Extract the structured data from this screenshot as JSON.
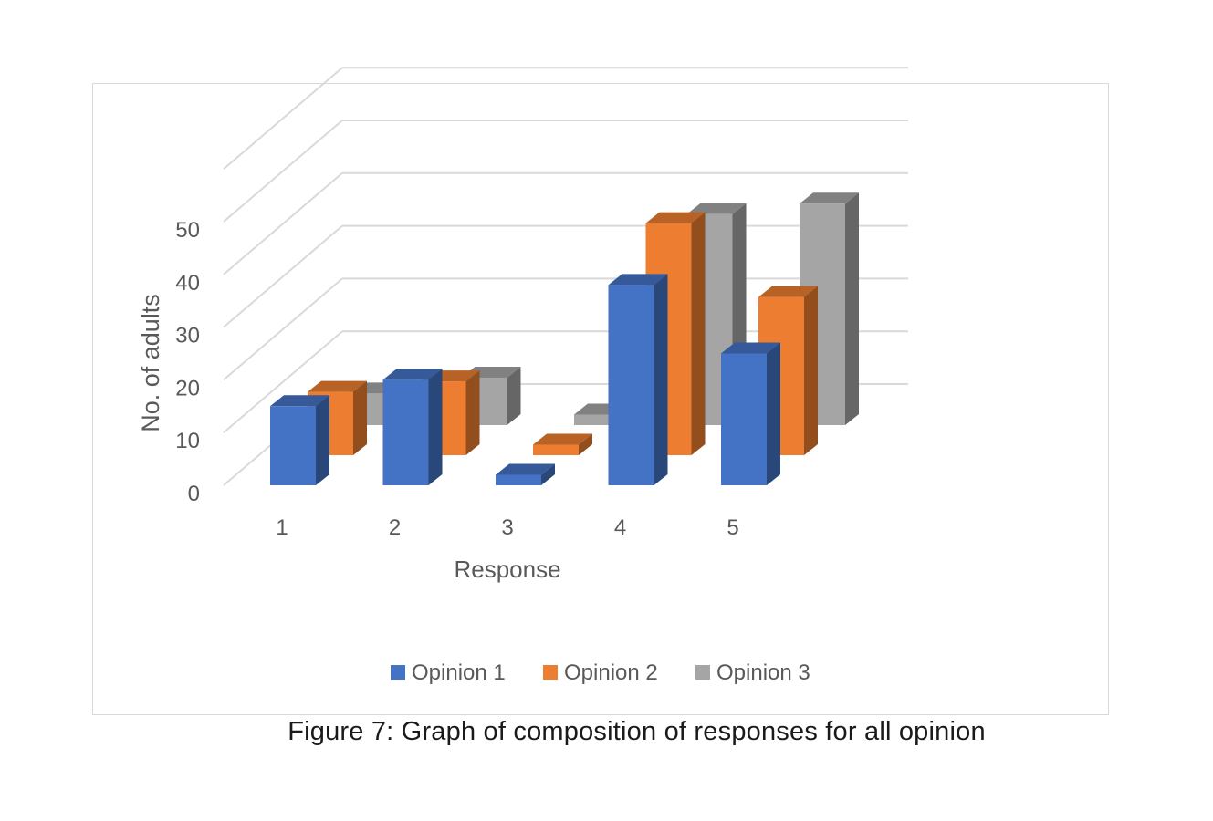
{
  "caption": "Figure 7: Graph of composition of responses for all opinion",
  "chart_data": {
    "type": "bar",
    "style": "3d-clustered-column",
    "title": "",
    "xlabel": "Response",
    "ylabel": "No. of adults",
    "categories": [
      "1",
      "2",
      "3",
      "4",
      "5"
    ],
    "yticks": [
      "0",
      "10",
      "20",
      "30",
      "40",
      "50"
    ],
    "ylim": [
      0,
      60
    ],
    "grid": true,
    "legend_position": "bottom",
    "series": [
      {
        "name": "Opinion 1",
        "color": "#4472C4",
        "values": [
          15,
          20,
          2,
          38,
          25
        ]
      },
      {
        "name": "Opinion 2",
        "color": "#ED7D31",
        "values": [
          12,
          14,
          2,
          44,
          30
        ]
      },
      {
        "name": "Opinion 3",
        "color": "#A5A5A5",
        "values": [
          6,
          9,
          2,
          40,
          42
        ]
      }
    ]
  }
}
